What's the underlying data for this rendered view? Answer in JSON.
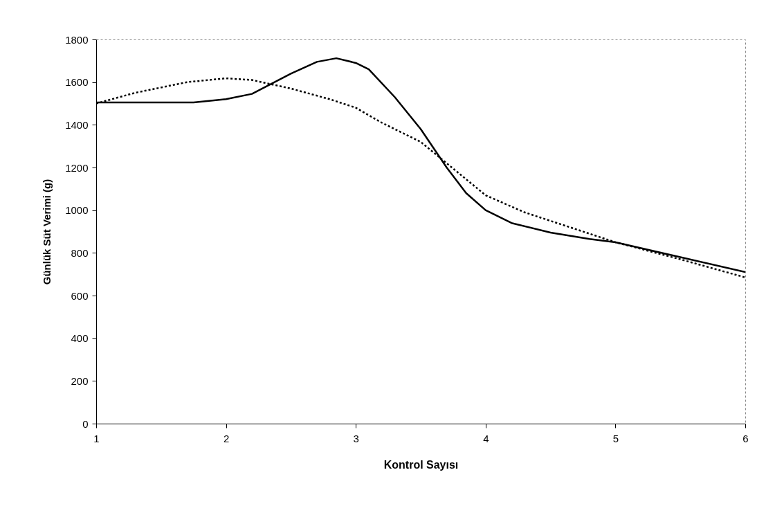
{
  "chart_data": {
    "type": "line",
    "xlabel": "Kontrol Sayısı",
    "ylabel": "Günlük Süt Verimi (g)",
    "xlim": [
      1,
      6
    ],
    "xticks": [
      1,
      2,
      3,
      4,
      5,
      6
    ],
    "ylim": [
      0,
      1800
    ],
    "yticks": [
      0,
      200,
      400,
      600,
      800,
      1000,
      1200,
      1400,
      1600,
      1800
    ],
    "grid": false,
    "marker": "none",
    "series": [
      {
        "color": "#000000",
        "line_style": "solid",
        "x": [
          1,
          1.4,
          1.75,
          2,
          2.2,
          2.5,
          2.7,
          2.85,
          3,
          3.1,
          3.3,
          3.5,
          3.7,
          3.85,
          4,
          4.2,
          4.5,
          4.8,
          5,
          5.5,
          6
        ],
        "values": [
          1505,
          1505,
          1505,
          1520,
          1545,
          1640,
          1695,
          1712,
          1690,
          1660,
          1530,
          1380,
          1200,
          1080,
          1000,
          940,
          895,
          865,
          850,
          780,
          710
        ]
      },
      {
        "color": "#000000",
        "line_style": "dotted",
        "x": [
          1,
          1.3,
          1.7,
          2,
          2.2,
          2.5,
          2.8,
          3,
          3.2,
          3.5,
          3.7,
          4,
          4.3,
          4.6,
          5,
          5.5,
          6
        ],
        "values": [
          1500,
          1550,
          1600,
          1618,
          1610,
          1570,
          1520,
          1480,
          1410,
          1320,
          1220,
          1070,
          990,
          930,
          850,
          770,
          685
        ]
      }
    ]
  }
}
